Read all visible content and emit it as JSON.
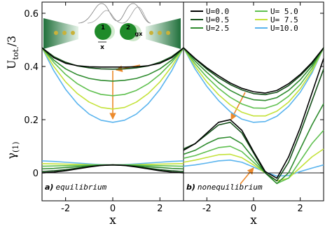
{
  "chart_data": {
    "type": "line",
    "x_label": "x",
    "y_label_top": {
      "main": "U",
      "sub": "tot.",
      "suffix": "/3"
    },
    "y_label_bottom": {
      "main": "γ",
      "sub": "(1)"
    },
    "x": [
      -3,
      -2.5,
      -2,
      -1.5,
      -1,
      -0.5,
      0,
      0.5,
      1,
      1.5,
      2,
      2.5,
      3
    ],
    "xlim": [
      -3,
      3
    ],
    "ylim": [
      -0.105,
      0.642
    ],
    "xticks": [
      -2,
      0,
      2
    ],
    "yticks": [
      0,
      0.2,
      0.4,
      0.6
    ],
    "series": [
      {
        "name": "U=0.0",
        "color": "#000000"
      },
      {
        "name": "U=0.5",
        "color": "#15501a"
      },
      {
        "name": "U=2.5",
        "color": "#2e8b2e"
      },
      {
        "name": "U= 5.0",
        "color": "#5fc04f"
      },
      {
        "name": "U= 7.5",
        "color": "#c4e23a"
      },
      {
        "name": "U=10.0",
        "color": "#5ab4ee"
      }
    ],
    "inset": {
      "labels": [
        "1",
        "2",
        "gx",
        "x"
      ]
    },
    "panels": [
      {
        "label": "a)",
        "text": "equilibrium",
        "tot": [
          [
            0.47,
            0.433,
            0.412,
            0.403,
            0.399,
            0.398,
            0.398,
            0.398,
            0.399,
            0.403,
            0.412,
            0.433,
            0.47
          ],
          [
            0.47,
            0.437,
            0.416,
            0.402,
            0.395,
            0.391,
            0.39,
            0.391,
            0.395,
            0.402,
            0.416,
            0.437,
            0.47
          ],
          [
            0.47,
            0.424,
            0.391,
            0.369,
            0.355,
            0.348,
            0.345,
            0.348,
            0.355,
            0.369,
            0.391,
            0.424,
            0.47
          ],
          [
            0.47,
            0.415,
            0.37,
            0.335,
            0.31,
            0.295,
            0.29,
            0.295,
            0.31,
            0.335,
            0.37,
            0.415,
            0.47
          ],
          [
            0.47,
            0.4,
            0.342,
            0.298,
            0.266,
            0.246,
            0.24,
            0.246,
            0.266,
            0.298,
            0.342,
            0.4,
            0.47
          ],
          [
            0.47,
            0.384,
            0.314,
            0.26,
            0.221,
            0.198,
            0.19,
            0.198,
            0.221,
            0.26,
            0.314,
            0.384,
            0.47
          ]
        ],
        "gamma": [
          [
            0,
            0.003,
            0.008,
            0.015,
            0.022,
            0.028,
            0.03,
            0.028,
            0.022,
            0.015,
            0.008,
            0.003,
            0
          ],
          [
            0.005,
            0.008,
            0.012,
            0.018,
            0.024,
            0.028,
            0.03,
            0.028,
            0.024,
            0.018,
            0.012,
            0.008,
            0.005
          ],
          [
            0.015,
            0.017,
            0.02,
            0.023,
            0.026,
            0.029,
            0.03,
            0.029,
            0.026,
            0.023,
            0.02,
            0.017,
            0.015
          ],
          [
            0.025,
            0.026,
            0.027,
            0.028,
            0.029,
            0.03,
            0.03,
            0.03,
            0.029,
            0.028,
            0.027,
            0.026,
            0.025
          ],
          [
            0.035,
            0.034,
            0.033,
            0.032,
            0.031,
            0.03,
            0.03,
            0.03,
            0.031,
            0.032,
            0.033,
            0.034,
            0.035
          ],
          [
            0.045,
            0.043,
            0.04,
            0.037,
            0.034,
            0.031,
            0.03,
            0.031,
            0.034,
            0.037,
            0.04,
            0.043,
            0.045
          ]
        ]
      },
      {
        "label": "b)",
        "text": "nonequilibrium",
        "tot": [
          [
            0.47,
            0.43,
            0.395,
            0.365,
            0.338,
            0.318,
            0.305,
            0.3,
            0.31,
            0.335,
            0.37,
            0.415,
            0.47
          ],
          [
            0.47,
            0.428,
            0.39,
            0.358,
            0.332,
            0.312,
            0.298,
            0.294,
            0.303,
            0.328,
            0.365,
            0.41,
            0.47
          ],
          [
            0.47,
            0.42,
            0.378,
            0.34,
            0.31,
            0.288,
            0.275,
            0.272,
            0.283,
            0.31,
            0.35,
            0.402,
            0.47
          ],
          [
            0.47,
            0.41,
            0.36,
            0.318,
            0.284,
            0.259,
            0.244,
            0.243,
            0.257,
            0.288,
            0.332,
            0.392,
            0.47
          ],
          [
            0.47,
            0.4,
            0.342,
            0.294,
            0.256,
            0.228,
            0.214,
            0.214,
            0.232,
            0.266,
            0.316,
            0.382,
            0.47
          ],
          [
            0.47,
            0.39,
            0.325,
            0.272,
            0.23,
            0.202,
            0.19,
            0.193,
            0.213,
            0.25,
            0.303,
            0.375,
            0.47
          ]
        ],
        "gamma": [
          [
            0.085,
            0.11,
            0.15,
            0.19,
            0.2,
            0.16,
            0.08,
            0.005,
            -0.02,
            0.06,
            0.17,
            0.3,
            0.43
          ],
          [
            0.09,
            0.11,
            0.145,
            0.18,
            0.19,
            0.15,
            0.075,
            0,
            -0.03,
            0.04,
            0.15,
            0.27,
            0.39
          ],
          [
            0.07,
            0.085,
            0.11,
            0.13,
            0.135,
            0.11,
            0.055,
            0,
            -0.04,
            0,
            0.09,
            0.18,
            0.26
          ],
          [
            0.055,
            0.065,
            0.08,
            0.095,
            0.1,
            0.08,
            0.04,
            0,
            -0.04,
            -0.02,
            0.045,
            0.11,
            0.16
          ],
          [
            0.04,
            0.048,
            0.058,
            0.068,
            0.07,
            0.057,
            0.03,
            0,
            -0.03,
            -0.02,
            0.02,
            0.06,
            0.09
          ],
          [
            0.025,
            0.03,
            0.037,
            0.045,
            0.048,
            0.04,
            0.022,
            0.003,
            -0.012,
            -0.01,
            0.005,
            0.018,
            0.03
          ]
        ]
      }
    ]
  }
}
